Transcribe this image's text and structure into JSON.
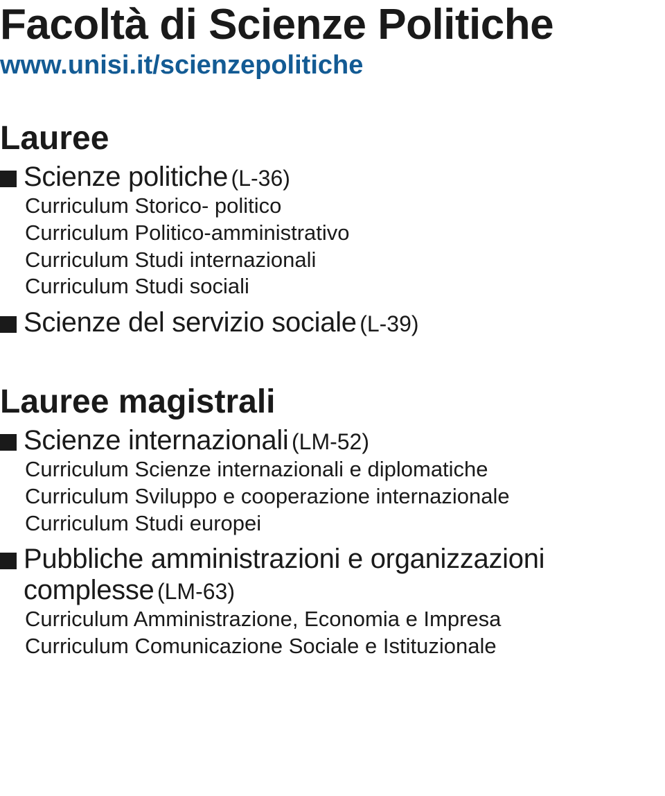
{
  "title": "Facoltà di Scienze Politiche",
  "url": "www.unisi.it/scienzepolitiche",
  "sections": [
    {
      "heading": "Lauree",
      "items": [
        {
          "name": "Scienze politiche",
          "code": "(L-36)",
          "curricula": [
            "Curriculum Storico- politico",
            "Curriculum Politico-amministrativo",
            "Curriculum Studi internazionali",
            "Curriculum Studi sociali"
          ]
        },
        {
          "name": "Scienze del servizio sociale",
          "code": "(L-39)",
          "curricula": []
        }
      ]
    },
    {
      "heading": "Lauree magistrali",
      "items": [
        {
          "name": "Scienze internazionali",
          "code": "(LM-52)",
          "curricula": [
            "Curriculum Scienze internazionali e diplomatiche",
            "Curriculum Sviluppo e cooperazione internazionale",
            "Curriculum Studi europei"
          ]
        },
        {
          "name": "Pubbliche amministrazioni e organizzazioni complesse",
          "code": "(LM-63)",
          "curricula": [
            "Curriculum Amministrazione, Economia e Impresa",
            "Curriculum Comunicazione Sociale e Istituzionale"
          ]
        }
      ]
    }
  ]
}
